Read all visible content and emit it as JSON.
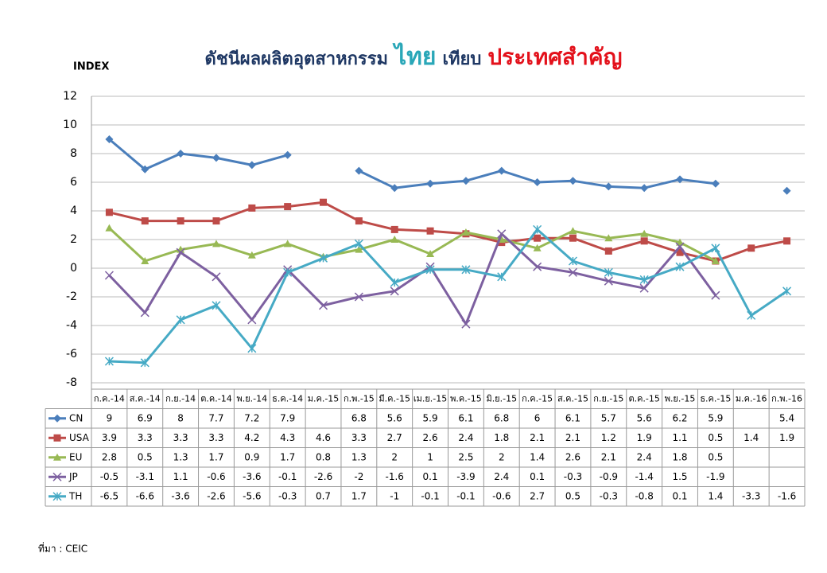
{
  "chart_data": {
    "type": "line",
    "title": [
      "ดัชนีผลผลิตอุตสาหกรรม",
      "ไทย",
      "เทียบ",
      "ประเทศสำคัญ"
    ],
    "y_label": "INDEX",
    "source": "ที่มา : CEIC",
    "categories": [
      "ก.ค.-14",
      "ส.ค.-14",
      "ก.ย.-14",
      "ต.ค.-14",
      "พ.ย.-14",
      "ธ.ค.-14",
      "ม.ค.-15",
      "ก.พ.-15",
      "มี.ค.-15",
      "เม.ย.-15",
      "พ.ค.-15",
      "มิ.ย.-15",
      "ก.ค.-15",
      "ส.ค.-15",
      "ก.ย.-15",
      "ต.ค.-15",
      "พ.ย.-15",
      "ธ.ค.-15",
      "ม.ค.-16",
      "ก.พ.-16"
    ],
    "series": [
      {
        "name": "CN",
        "color": "#4a7ebb",
        "marker": "diamond",
        "values": [
          9,
          6.9,
          8,
          7.7,
          7.2,
          7.9,
          null,
          6.8,
          5.6,
          5.9,
          6.1,
          6.8,
          6,
          6.1,
          5.7,
          5.6,
          6.2,
          5.9,
          null,
          5.4
        ]
      },
      {
        "name": "USA",
        "color": "#be4b48",
        "marker": "square",
        "values": [
          3.9,
          3.3,
          3.3,
          3.3,
          4.2,
          4.3,
          4.6,
          3.3,
          2.7,
          2.6,
          2.4,
          1.8,
          2.1,
          2.1,
          1.2,
          1.9,
          1.1,
          0.5,
          1.4,
          1.9
        ]
      },
      {
        "name": "EU",
        "color": "#98b954",
        "marker": "triangle",
        "values": [
          2.8,
          0.5,
          1.3,
          1.7,
          0.9,
          1.7,
          0.8,
          1.3,
          2,
          1,
          2.5,
          2,
          1.4,
          2.6,
          2.1,
          2.4,
          1.8,
          0.5,
          null,
          null
        ]
      },
      {
        "name": "JP",
        "color": "#7d60a0",
        "marker": "x",
        "values": [
          -0.5,
          -3.1,
          1.1,
          -0.6,
          -3.6,
          -0.1,
          -2.6,
          -2,
          -1.6,
          0.1,
          -3.9,
          2.4,
          0.1,
          -0.3,
          -0.9,
          -1.4,
          1.5,
          -1.9,
          null,
          null
        ]
      },
      {
        "name": "TH",
        "color": "#46aac5",
        "marker": "star",
        "values": [
          -6.5,
          -6.6,
          -3.6,
          -2.6,
          -5.6,
          -0.3,
          0.7,
          1.7,
          -1,
          -0.1,
          -0.1,
          -0.6,
          2.7,
          0.5,
          -0.3,
          -0.8,
          0.1,
          1.4,
          -3.3,
          -1.6
        ]
      }
    ],
    "ylim": [
      -8,
      12
    ],
    "yticks": [
      -8,
      -6,
      -4,
      -2,
      0,
      2,
      4,
      6,
      8,
      10,
      12
    ],
    "grid": true
  }
}
